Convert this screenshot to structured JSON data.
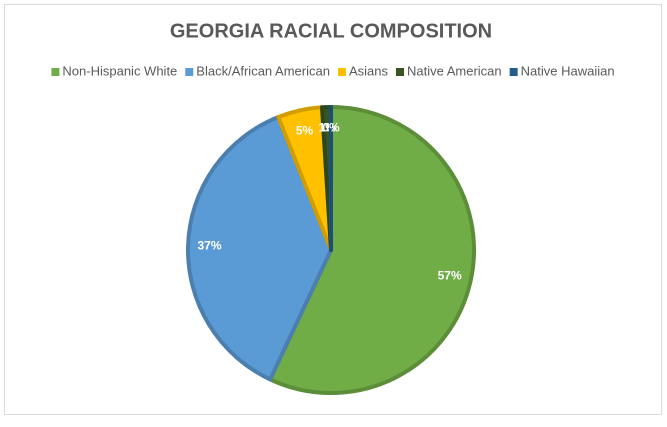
{
  "chart_data": {
    "type": "pie",
    "title": "GEORGIA RACIAL COMPOSITION",
    "categories": [
      "Non-Hispanic White",
      "Black/African American",
      "Asians",
      "Native American",
      "Native Hawaiian"
    ],
    "values": [
      57,
      37,
      5,
      1,
      0
    ],
    "value_labels": [
      "57%",
      "37%",
      "5%",
      "1%",
      "0%"
    ],
    "colors": [
      "#70ad47",
      "#5b9bd5",
      "#ffc000",
      "#375623",
      "#255e91"
    ],
    "legend": "top"
  }
}
